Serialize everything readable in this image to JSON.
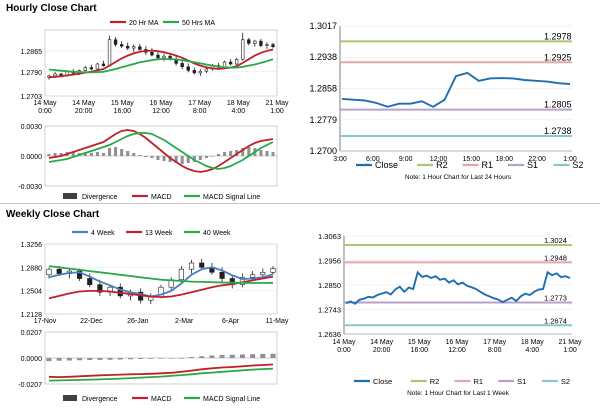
{
  "sections": {
    "hourly_title": "Hourly Close Chart",
    "weekly_title": "Weekly Close Chart"
  },
  "colors": {
    "close": "#1f6fae",
    "ma20": "#c0202a",
    "ma50": "#2aa84a",
    "r2": "#a8c878",
    "r1": "#e0a8a8",
    "s1": "#b8a0c8",
    "s2": "#88c8c8",
    "divergence": "#909090",
    "candle_up": "#ffffff",
    "candle_down": "#202020"
  },
  "chart_data": [
    {
      "id": "hourly_candles",
      "type": "candlestick",
      "xlabels": [
        "14 May\n0:00",
        "14 May\n20:00",
        "15 May\n16:00",
        "16 May\n12:00",
        "17 May\n8:00",
        "18 May\n4:00",
        "21 May\n1:00"
      ],
      "yticks": [
        "1.2865",
        "1.2790",
        "1.2703"
      ],
      "ylim": [
        1.2703,
        1.294
      ],
      "legend": [
        "20 Hr MA",
        "50 Hrs MA"
      ],
      "ohlc": [
        [
          1.277,
          1.278,
          1.2762,
          1.2775
        ],
        [
          1.2775,
          1.279,
          1.2768,
          1.2782
        ],
        [
          1.2782,
          1.2786,
          1.277,
          1.2776
        ],
        [
          1.2776,
          1.2795,
          1.2772,
          1.279
        ],
        [
          1.279,
          1.28,
          1.278,
          1.2785
        ],
        [
          1.2785,
          1.2798,
          1.2778,
          1.2794
        ],
        [
          1.2794,
          1.281,
          1.2788,
          1.2805
        ],
        [
          1.2805,
          1.2815,
          1.2795,
          1.28
        ],
        [
          1.28,
          1.2822,
          1.2796,
          1.2818
        ],
        [
          1.2818,
          1.283,
          1.2808,
          1.2812
        ],
        [
          1.2812,
          1.292,
          1.281,
          1.2905
        ],
        [
          1.2905,
          1.2915,
          1.288,
          1.2888
        ],
        [
          1.2888,
          1.29,
          1.2875,
          1.2882
        ],
        [
          1.2882,
          1.2895,
          1.2868,
          1.2875
        ],
        [
          1.2875,
          1.2888,
          1.286,
          1.288
        ],
        [
          1.288,
          1.289,
          1.2866,
          1.287
        ],
        [
          1.287,
          1.2882,
          1.285,
          1.286
        ],
        [
          1.286,
          1.2875,
          1.2845,
          1.285
        ],
        [
          1.285,
          1.2862,
          1.2832,
          1.284
        ],
        [
          1.284,
          1.2855,
          1.2828,
          1.2846
        ],
        [
          1.2846,
          1.2858,
          1.283,
          1.2836
        ],
        [
          1.2836,
          1.2845,
          1.2812,
          1.282
        ],
        [
          1.282,
          1.2832,
          1.28,
          1.2808
        ],
        [
          1.2808,
          1.282,
          1.2788,
          1.2795
        ],
        [
          1.2795,
          1.2805,
          1.278,
          1.2786
        ],
        [
          1.2786,
          1.28,
          1.2775,
          1.2792
        ],
        [
          1.2792,
          1.281,
          1.2785,
          1.28
        ],
        [
          1.28,
          1.2818,
          1.2794,
          1.2812
        ],
        [
          1.2812,
          1.2822,
          1.28,
          1.2806
        ],
        [
          1.2806,
          1.283,
          1.2802,
          1.2825
        ],
        [
          1.2825,
          1.2835,
          1.2812,
          1.2818
        ],
        [
          1.2818,
          1.284,
          1.2814,
          1.2835
        ],
        [
          1.2835,
          1.293,
          1.283,
          1.2905
        ],
        [
          1.2905,
          1.2912,
          1.2885,
          1.2892
        ],
        [
          1.2892,
          1.2905,
          1.288,
          1.29
        ],
        [
          1.29,
          1.2908,
          1.2878,
          1.2884
        ],
        [
          1.2884,
          1.2896,
          1.2872,
          1.2888
        ],
        [
          1.2888,
          1.2894,
          1.2874,
          1.288
        ]
      ],
      "ma20": [
        1.277,
        1.2772,
        1.2774,
        1.2777,
        1.278,
        1.2783,
        1.2787,
        1.279,
        1.2795,
        1.28,
        1.2812,
        1.2825,
        1.2838,
        1.2848,
        1.2856,
        1.2862,
        1.2865,
        1.2866,
        1.2864,
        1.286,
        1.2855,
        1.2848,
        1.284,
        1.283,
        1.282,
        1.2812,
        1.2806,
        1.2802,
        1.28,
        1.2802,
        1.2805,
        1.281,
        1.2822,
        1.2835,
        1.2848,
        1.2858,
        1.2865,
        1.287
      ],
      "ma50": [
        1.2798,
        1.2796,
        1.2794,
        1.2792,
        1.279,
        1.2789,
        1.2788,
        1.2788,
        1.2789,
        1.279,
        1.2795,
        1.28,
        1.2806,
        1.2812,
        1.2818,
        1.2824,
        1.2828,
        1.2832,
        1.2835,
        1.2836,
        1.2836,
        1.2834,
        1.2832,
        1.2828,
        1.2824,
        1.282,
        1.2816,
        1.2812,
        1.2808,
        1.2806,
        1.2805,
        1.2805,
        1.2808,
        1.2812,
        1.2816,
        1.2822,
        1.2828,
        1.2835
      ]
    },
    {
      "id": "hourly_macd",
      "type": "bar+line",
      "yticks": [
        "0.0030",
        "0.0000",
        "-0.0030"
      ],
      "ylim": [
        -0.003,
        0.003
      ],
      "legend": [
        "Divergence",
        "MACD",
        "MACD Signal Line"
      ],
      "divergence": [
        0.0002,
        0.0003,
        0.0003,
        0.0004,
        0.0004,
        0.0003,
        0.0004,
        0.0003,
        0.0004,
        0.0003,
        0.0008,
        0.0009,
        0.0007,
        0.0005,
        0.0003,
        0.0001,
        -0.0001,
        -0.0002,
        -0.0004,
        -0.0005,
        -0.0006,
        -0.0007,
        -0.0008,
        -0.0007,
        -0.0006,
        -0.0004,
        -0.0002,
        0.0,
        0.0002,
        0.0004,
        0.0005,
        0.0006,
        0.0008,
        0.0009,
        0.0008,
        0.0006,
        0.0005,
        0.0004
      ],
      "macd": [
        -0.0002,
        -0.0001,
        0.0,
        0.0002,
        0.0004,
        0.0006,
        0.0008,
        0.001,
        0.0012,
        0.0014,
        0.0018,
        0.0022,
        0.0025,
        0.0026,
        0.0025,
        0.0022,
        0.0018,
        0.0013,
        0.0008,
        0.0003,
        -0.0002,
        -0.0006,
        -0.001,
        -0.0013,
        -0.0015,
        -0.0016,
        -0.0015,
        -0.0013,
        -0.001,
        -0.0006,
        -0.0002,
        0.0002,
        0.0006,
        0.001,
        0.0013,
        0.0015,
        0.0016,
        0.0017
      ],
      "signal": [
        -0.0006,
        -0.0005,
        -0.0004,
        -0.0003,
        -0.0001,
        0.0001,
        0.0003,
        0.0005,
        0.0007,
        0.0009,
        0.0011,
        0.0014,
        0.0017,
        0.002,
        0.0022,
        0.0023,
        0.0023,
        0.0022,
        0.0019,
        0.0016,
        0.0012,
        0.0008,
        0.0004,
        0.0,
        -0.0004,
        -0.0007,
        -0.001,
        -0.0012,
        -0.0013,
        -0.0012,
        -0.001,
        -0.0007,
        -0.0004,
        0.0,
        0.0004,
        0.0008,
        0.0011,
        0.0014
      ]
    },
    {
      "id": "hourly_close",
      "type": "line",
      "xlabels": [
        "3:00",
        "6:00",
        "9:00",
        "12:00",
        "15:00",
        "18:00",
        "22:00",
        "1:00"
      ],
      "yticks": [
        "1.3017",
        "1.2938",
        "1.2858",
        "1.2779",
        "1.2700"
      ],
      "ylim": [
        1.27,
        1.3017
      ],
      "levels": [
        {
          "name": "R2",
          "value": 1.2978,
          "label": "1.2978"
        },
        {
          "name": "R1",
          "value": 1.2925,
          "label": "1.2925"
        },
        {
          "name": "S1",
          "value": 1.2805,
          "label": "1.2805"
        },
        {
          "name": "S2",
          "value": 1.2738,
          "label": "1.2738"
        }
      ],
      "close": [
        1.2832,
        1.283,
        1.2828,
        1.2822,
        1.2812,
        1.282,
        1.282,
        1.2826,
        1.2812,
        1.283,
        1.289,
        1.2898,
        1.2878,
        1.2884,
        1.2885,
        1.2884,
        1.288,
        1.2878,
        1.2876,
        1.2872,
        1.287
      ],
      "legend": [
        "Close",
        "R2",
        "R1",
        "S1",
        "S2"
      ],
      "note": "Note: 1 Hour Chart for Last 24 Hours"
    },
    {
      "id": "weekly_candles",
      "type": "candlestick",
      "xlabels": [
        "17-Nov",
        "22-Dec",
        "26-Jan",
        "2-Mar",
        "6-Apr",
        "11-May"
      ],
      "yticks": [
        "1.3256",
        "1.2880",
        "1.2504",
        "1.2128"
      ],
      "ylim": [
        1.2128,
        1.3256
      ],
      "legend": [
        "4 Week",
        "13 Week",
        "40 Week"
      ],
      "ohlc": [
        [
          1.276,
          1.288,
          1.27,
          1.285
        ],
        [
          1.285,
          1.29,
          1.274,
          1.278
        ],
        [
          1.278,
          1.286,
          1.27,
          1.282
        ],
        [
          1.282,
          1.286,
          1.266,
          1.27
        ],
        [
          1.27,
          1.278,
          1.256,
          1.26
        ],
        [
          1.26,
          1.268,
          1.242,
          1.248
        ],
        [
          1.248,
          1.26,
          1.242,
          1.256
        ],
        [
          1.256,
          1.262,
          1.238,
          1.242
        ],
        [
          1.242,
          1.252,
          1.235,
          1.248
        ],
        [
          1.248,
          1.254,
          1.23,
          1.235
        ],
        [
          1.235,
          1.246,
          1.229,
          1.24
        ],
        [
          1.24,
          1.26,
          1.238,
          1.256
        ],
        [
          1.256,
          1.272,
          1.252,
          1.268
        ],
        [
          1.268,
          1.29,
          1.264,
          1.285
        ],
        [
          1.285,
          1.3,
          1.278,
          1.295
        ],
        [
          1.295,
          1.302,
          1.285,
          1.288
        ],
        [
          1.288,
          1.295,
          1.276,
          1.28
        ],
        [
          1.28,
          1.288,
          1.264,
          1.27
        ],
        [
          1.27,
          1.276,
          1.254,
          1.26
        ],
        [
          1.26,
          1.278,
          1.256,
          1.272
        ],
        [
          1.272,
          1.282,
          1.266,
          1.276
        ],
        [
          1.276,
          1.286,
          1.27,
          1.28
        ],
        [
          1.28,
          1.29,
          1.276,
          1.286
        ]
      ],
      "ma4": [
        1.272,
        1.276,
        1.279,
        1.28,
        1.273,
        1.265,
        1.259,
        1.252,
        1.248,
        1.245,
        1.241,
        1.244,
        1.25,
        1.262,
        1.276,
        1.285,
        1.288,
        1.283,
        1.275,
        1.269,
        1.27,
        1.272,
        1.277
      ],
      "ma13": [
        1.238,
        1.242,
        1.246,
        1.249,
        1.25,
        1.25,
        1.249,
        1.247,
        1.245,
        1.243,
        1.241,
        1.24,
        1.241,
        1.244,
        1.248,
        1.252,
        1.256,
        1.259,
        1.261,
        1.264,
        1.267,
        1.27,
        1.273
      ],
      "ma40": [
        1.29,
        1.288,
        1.286,
        1.284,
        1.282,
        1.28,
        1.278,
        1.276,
        1.274,
        1.272,
        1.27,
        1.268,
        1.267,
        1.266,
        1.265,
        1.2645,
        1.264,
        1.2636,
        1.2632,
        1.263,
        1.2628,
        1.2628,
        1.263
      ]
    },
    {
      "id": "weekly_macd",
      "type": "bar+line",
      "yticks": [
        "0.0207",
        "0.0000",
        "-0.0207"
      ],
      "ylim": [
        -0.0207,
        0.0207
      ],
      "legend": [
        "Divergence",
        "MACD",
        "MACD Signal Line"
      ],
      "divergence": [
        -0.0025,
        -0.0022,
        -0.002,
        -0.0018,
        -0.0016,
        -0.0015,
        -0.0014,
        -0.0012,
        -0.001,
        -0.0008,
        -0.0006,
        -0.0004,
        -0.0002,
        0.0,
        0.0008,
        0.0014,
        0.002,
        0.0024,
        0.0026,
        0.0028,
        0.003,
        0.0032,
        0.0034
      ],
      "macd": [
        -0.015,
        -0.0152,
        -0.015,
        -0.0146,
        -0.0142,
        -0.0138,
        -0.0135,
        -0.0132,
        -0.013,
        -0.0128,
        -0.0126,
        -0.0122,
        -0.0118,
        -0.011,
        -0.01,
        -0.009,
        -0.0082,
        -0.0076,
        -0.0072,
        -0.0066,
        -0.006,
        -0.0056,
        -0.0052
      ],
      "signal": [
        -0.018,
        -0.0178,
        -0.0176,
        -0.0174,
        -0.0172,
        -0.017,
        -0.0167,
        -0.0164,
        -0.016,
        -0.0156,
        -0.0152,
        -0.0148,
        -0.0142,
        -0.0136,
        -0.013,
        -0.0122,
        -0.0116,
        -0.011,
        -0.0104,
        -0.0098,
        -0.0092,
        -0.0088,
        -0.0084
      ]
    },
    {
      "id": "weekly_close",
      "type": "line",
      "xlabels": [
        "14 May\n0:00",
        "14 May\n20:00",
        "15 May\n16:00",
        "16 May\n12:00",
        "17 May\n8:00",
        "18 May\n4:00",
        "21 May\n1:00"
      ],
      "yticks": [
        "1.3063",
        "1.2956",
        "1.2850",
        "1.2743",
        "1.2636"
      ],
      "ylim": [
        1.2636,
        1.3063
      ],
      "levels": [
        {
          "name": "R2",
          "value": 1.3024,
          "label": "1.3024"
        },
        {
          "name": "R1",
          "value": 1.2948,
          "label": "1.2948"
        },
        {
          "name": "S1",
          "value": 1.2773,
          "label": "1.2773"
        },
        {
          "name": "S2",
          "value": 1.2674,
          "label": "1.2674"
        }
      ],
      "close": [
        1.277,
        1.2778,
        1.2768,
        1.2785,
        1.279,
        1.2798,
        1.2795,
        1.2806,
        1.2812,
        1.2818,
        1.2808,
        1.283,
        1.2842,
        1.282,
        1.2838,
        1.2832,
        1.2905,
        1.2885,
        1.289,
        1.288,
        1.2888,
        1.2872,
        1.2878,
        1.286,
        1.287,
        1.2852,
        1.286,
        1.2846,
        1.284,
        1.2832,
        1.282,
        1.2808,
        1.28,
        1.2792,
        1.2786,
        1.2775,
        1.2785,
        1.2794,
        1.278,
        1.28,
        1.2812,
        1.2806,
        1.282,
        1.283,
        1.2832,
        1.2905,
        1.2892,
        1.29,
        1.2884,
        1.2888,
        1.288
      ],
      "legend": [
        "Close",
        "R2",
        "R1",
        "S1",
        "S2"
      ],
      "note": "Note: 1 Hour Chart for Last 1 Week"
    }
  ]
}
